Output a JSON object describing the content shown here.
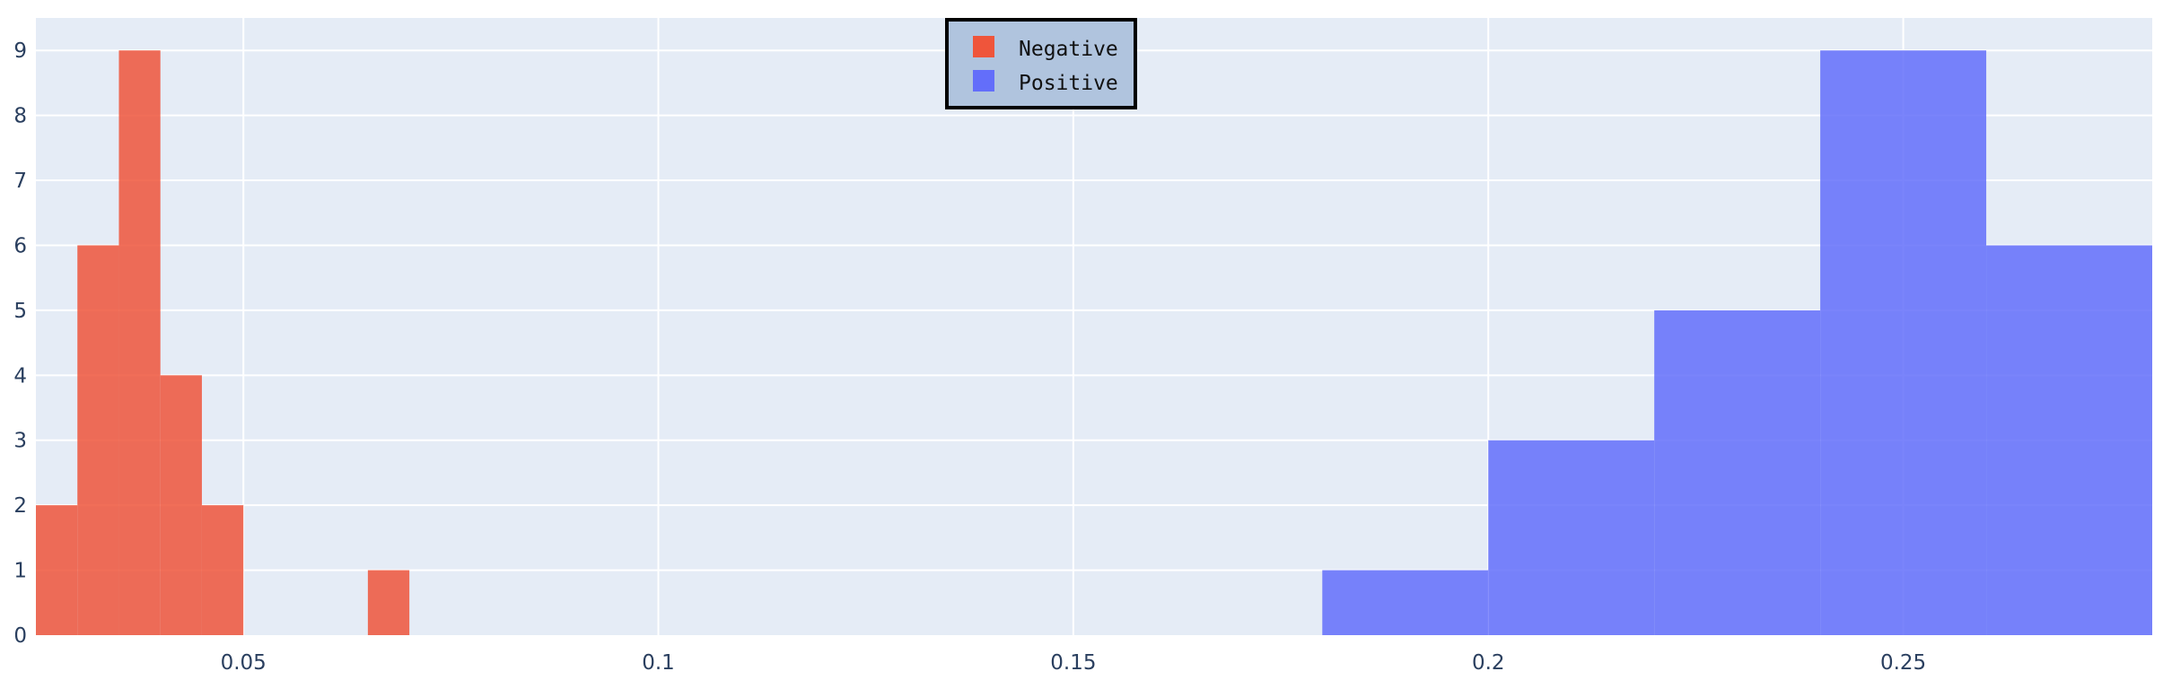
{
  "chart_data": {
    "type": "bar",
    "title": "",
    "xlabel": "",
    "ylabel": "",
    "xlim": [
      0.025,
      0.28
    ],
    "ylim": [
      0,
      9.5
    ],
    "grid": true,
    "legend_position": "top-center",
    "x_ticks": [
      {
        "value": 0.05,
        "label": "0.05"
      },
      {
        "value": 0.1,
        "label": "0.1"
      },
      {
        "value": 0.15,
        "label": "0.15"
      },
      {
        "value": 0.2,
        "label": "0.2"
      },
      {
        "value": 0.25,
        "label": "0.25"
      }
    ],
    "y_ticks": [
      {
        "value": 0,
        "label": "0"
      },
      {
        "value": 1,
        "label": "1"
      },
      {
        "value": 2,
        "label": "2"
      },
      {
        "value": 3,
        "label": "3"
      },
      {
        "value": 4,
        "label": "4"
      },
      {
        "value": 5,
        "label": "5"
      },
      {
        "value": 6,
        "label": "6"
      },
      {
        "value": 7,
        "label": "7"
      },
      {
        "value": 8,
        "label": "8"
      },
      {
        "value": 9,
        "label": "9"
      }
    ],
    "colors": {
      "plot_background": "#e5ecf6",
      "grid": "#ffffff",
      "legend_background": "#b0c4de",
      "legend_border": "#000000"
    },
    "series": [
      {
        "name": "Negative",
        "color": "#ef553b",
        "bins": [
          {
            "start": 0.025,
            "end": 0.03,
            "count": 2
          },
          {
            "start": 0.03,
            "end": 0.035,
            "count": 6
          },
          {
            "start": 0.035,
            "end": 0.04,
            "count": 9
          },
          {
            "start": 0.04,
            "end": 0.045,
            "count": 4
          },
          {
            "start": 0.045,
            "end": 0.05,
            "count": 2
          },
          {
            "start": 0.065,
            "end": 0.07,
            "count": 1
          }
        ]
      },
      {
        "name": "Positive",
        "color": "#636efa",
        "bins": [
          {
            "start": 0.18,
            "end": 0.2,
            "count": 1
          },
          {
            "start": 0.2,
            "end": 0.22,
            "count": 3
          },
          {
            "start": 0.22,
            "end": 0.24,
            "count": 5
          },
          {
            "start": 0.24,
            "end": 0.26,
            "count": 9
          },
          {
            "start": 0.26,
            "end": 0.28,
            "count": 6
          }
        ]
      }
    ]
  }
}
